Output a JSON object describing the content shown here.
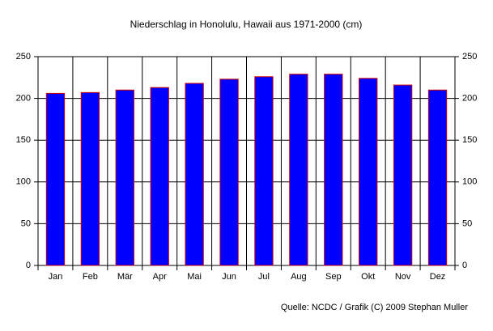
{
  "chart_data": {
    "type": "bar",
    "title": "Niederschlag in Honolulu, Hawaii aus 1971-2000 (cm)",
    "source": "Quelle: NCDC / Grafik (C) 2009 Stephan Muller",
    "categories": [
      "Jan",
      "Feb",
      "Mär",
      "Apr",
      "Mai",
      "Jun",
      "Jul",
      "Aug",
      "Sep",
      "Okt",
      "Nov",
      "Dez"
    ],
    "values": [
      206,
      207,
      210,
      213,
      218,
      223,
      226,
      229,
      229,
      224,
      216,
      210
    ],
    "color": "#0000ff",
    "edgecolor": "#cc0000",
    "ylim": [
      0,
      250
    ],
    "yticks": [
      0,
      50,
      100,
      150,
      200,
      250
    ],
    "y2lim": [
      0,
      250
    ],
    "y2ticks": [
      0,
      50,
      100,
      150,
      200,
      250
    ],
    "grid": true
  }
}
